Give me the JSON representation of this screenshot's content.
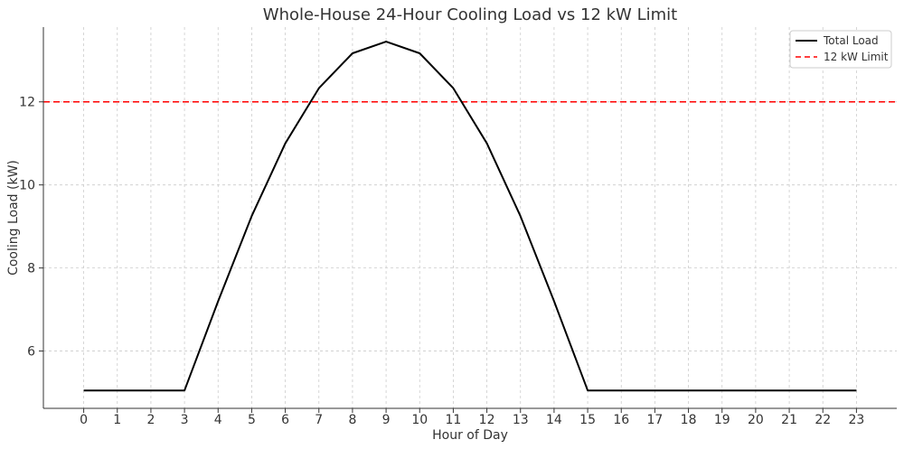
{
  "chart_data": {
    "type": "line",
    "title": "Whole-House 24-Hour Cooling Load vs 12 kW Limit",
    "xlabel": "Hour of Day",
    "ylabel": "Cooling Load (kW)",
    "x": [
      0,
      1,
      2,
      3,
      4,
      5,
      6,
      7,
      8,
      9,
      10,
      11,
      12,
      13,
      14,
      15,
      16,
      17,
      18,
      19,
      20,
      21,
      22,
      23
    ],
    "xlim": [
      -1.2,
      24.2
    ],
    "ylim": [
      4.62,
      13.8
    ],
    "yticks": [
      6,
      8,
      10,
      12
    ],
    "grid": true,
    "legend_position": "top-right",
    "series": [
      {
        "name": "Total Load",
        "color": "#000000",
        "style": "solid",
        "values": [
          5.05,
          5.05,
          5.05,
          5.05,
          7.2,
          9.25,
          11.0,
          12.33,
          13.17,
          13.45,
          13.17,
          12.33,
          11.0,
          9.25,
          7.2,
          5.05,
          5.05,
          5.05,
          5.05,
          5.05,
          5.05,
          5.05,
          5.05,
          5.05
        ]
      },
      {
        "name": "12 kW Limit",
        "color": "#ff0000",
        "style": "dashed",
        "constant": 12
      }
    ]
  }
}
